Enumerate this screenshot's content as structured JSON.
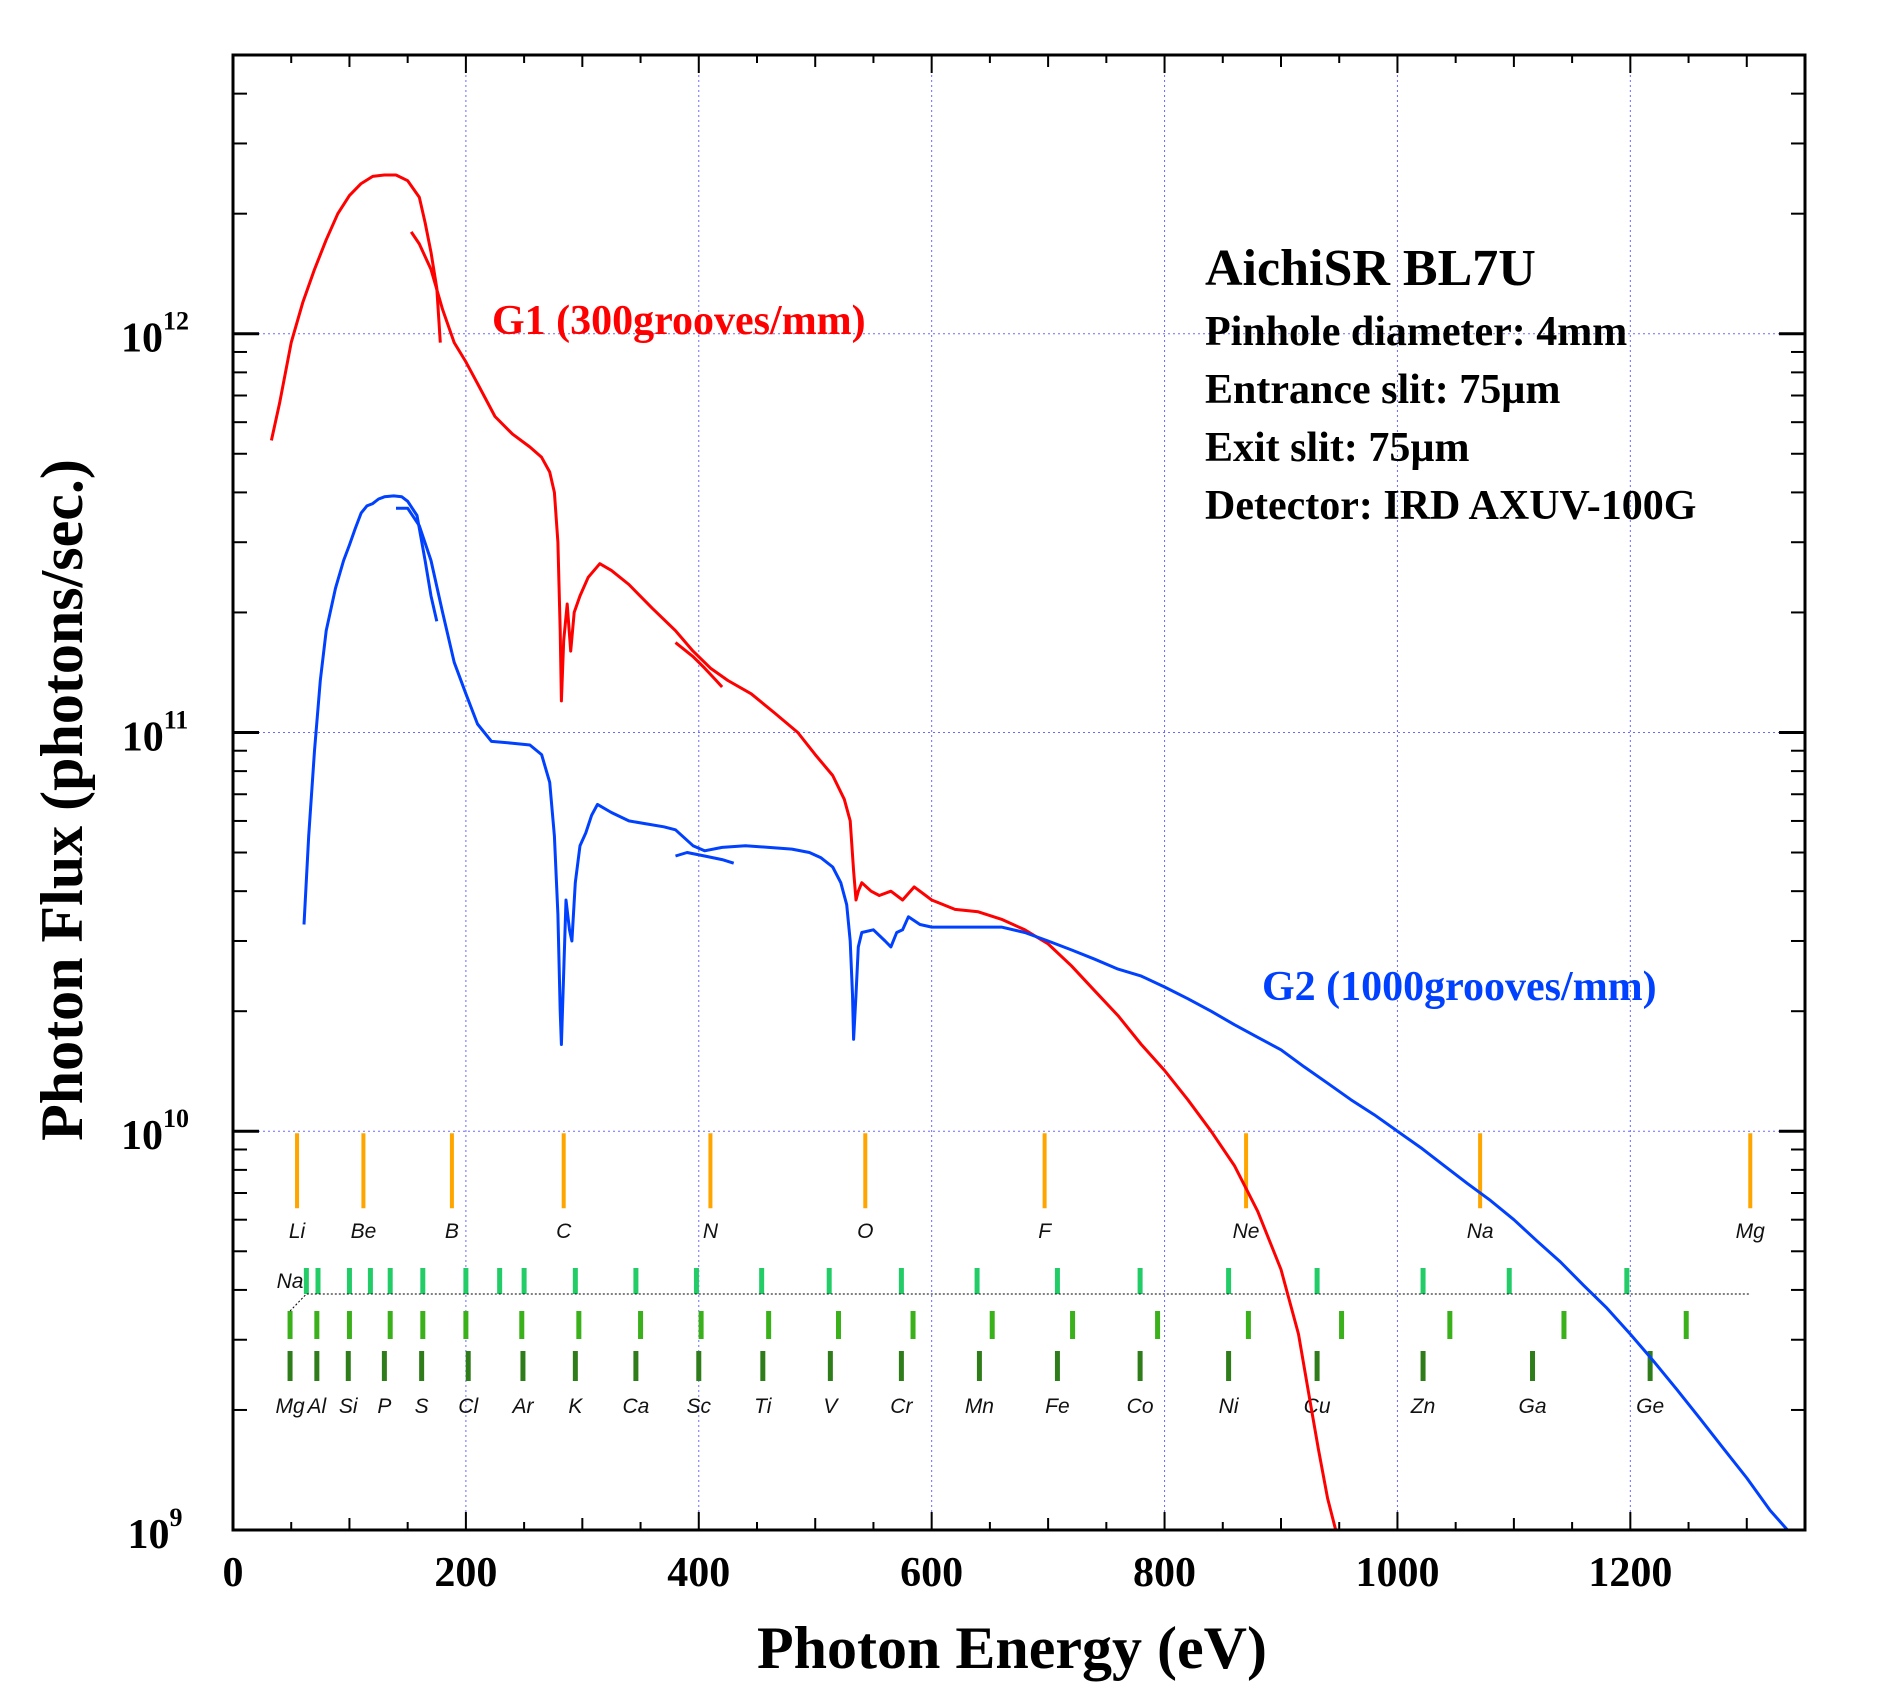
{
  "chart_data": {
    "type": "line",
    "title": "AichiSR BL7U",
    "annotations": [
      "Pinhole diameter: 4mm",
      "Entrance slit: 75µm",
      "Exit slit: 75µm",
      "Detector: IRD AXUV-100G"
    ],
    "xlabel": "Photon Energy (eV)",
    "ylabel": "Photon Flux (photons/sec.)",
    "xlim": [
      0,
      1350
    ],
    "ylim": [
      1000000000.0,
      5000000000000.0
    ],
    "yscale": "log",
    "grid": true,
    "x_ticks": [
      "0",
      "200",
      "400",
      "600",
      "800",
      "1000",
      "1200"
    ],
    "y_ticks": [
      {
        "base": "10",
        "exp": "9",
        "value": 1000000000.0
      },
      {
        "base": "10",
        "exp": "10",
        "value": 10000000000.0
      },
      {
        "base": "10",
        "exp": "11",
        "value": 100000000000.0
      },
      {
        "base": "10",
        "exp": "12",
        "value": 1000000000000.0
      }
    ],
    "series": [
      {
        "name": "G1 (300grooves/mm)",
        "color": "#ff0000",
        "segments": [
          [
            [
              33,
              540000000000.0
            ],
            [
              40,
              670000000000.0
            ],
            [
              50,
              950000000000.0
            ],
            [
              60,
              1200000000000.0
            ],
            [
              70,
              1450000000000.0
            ],
            [
              80,
              1720000000000.0
            ],
            [
              90,
              2000000000000.0
            ],
            [
              100,
              2220000000000.0
            ],
            [
              110,
              2380000000000.0
            ],
            [
              120,
              2480000000000.0
            ],
            [
              130,
              2500000000000.0
            ],
            [
              140,
              2500000000000.0
            ],
            [
              150,
              2420000000000.0
            ],
            [
              160,
              2200000000000.0
            ],
            [
              165,
              1900000000000.0
            ],
            [
              170,
              1600000000000.0
            ],
            [
              175,
              1300000000000.0
            ],
            [
              178,
              950000000000.0
            ]
          ],
          [
            [
              153,
              1800000000000.0
            ],
            [
              160,
              1680000000000.0
            ],
            [
              170,
              1450000000000.0
            ],
            [
              180,
              1150000000000.0
            ],
            [
              190,
              950000000000.0
            ],
            [
              200,
              850000000000.0
            ],
            [
              210,
              750000000000.0
            ],
            [
              225,
              620000000000.0
            ],
            [
              240,
              560000000000.0
            ],
            [
              255,
              520000000000.0
            ],
            [
              265,
              490000000000.0
            ],
            [
              272,
              450000000000.0
            ],
            [
              276,
              400000000000.0
            ],
            [
              279,
              300000000000.0
            ],
            [
              281,
              180000000000.0
            ],
            [
              282,
              120000000000.0
            ],
            [
              284,
              170000000000.0
            ],
            [
              287,
              210000000000.0
            ],
            [
              290,
              160000000000.0
            ],
            [
              293,
              200000000000.0
            ],
            [
              298,
              220000000000.0
            ],
            [
              305,
              245000000000.0
            ],
            [
              315,
              265000000000.0
            ],
            [
              325,
              255000000000.0
            ],
            [
              340,
              235000000000.0
            ],
            [
              360,
              205000000000.0
            ],
            [
              380,
              180000000000.0
            ],
            [
              395,
              160000000000.0
            ],
            [
              410,
              145000000000.0
            ],
            [
              425,
              135000000000.0
            ],
            [
              445,
              125000000000.0
            ],
            [
              465,
              112000000000.0
            ],
            [
              485,
              100000000000.0
            ],
            [
              500,
              88000000000.0
            ],
            [
              515,
              78000000000.0
            ],
            [
              525,
              68000000000.0
            ],
            [
              530,
              60000000000.0
            ],
            [
              533,
              45000000000.0
            ],
            [
              535,
              38000000000.0
            ],
            [
              537,
              40000000000.0
            ],
            [
              540,
              42000000000.0
            ],
            [
              548,
              40000000000.0
            ],
            [
              555,
              39000000000.0
            ],
            [
              565,
              40000000000.0
            ],
            [
              575,
              38000000000.0
            ],
            [
              585,
              41000000000.0
            ],
            [
              600,
              38000000000.0
            ],
            [
              620,
              36000000000.0
            ],
            [
              640,
              35500000000.0
            ],
            [
              660,
              34000000000.0
            ],
            [
              680,
              32000000000.0
            ],
            [
              700,
              29500000000.0
            ],
            [
              720,
              26000000000.0
            ],
            [
              740,
              22500000000.0
            ],
            [
              760,
              19500000000.0
            ],
            [
              780,
              16500000000.0
            ],
            [
              800,
              14200000000.0
            ],
            [
              820,
              12000000000.0
            ],
            [
              840,
              10000000000.0
            ],
            [
              860,
              8200000000.0
            ],
            [
              880,
              6300000000.0
            ],
            [
              900,
              4500000000.0
            ],
            [
              915,
              3100000000.0
            ],
            [
              925,
              2100000000.0
            ],
            [
              932,
              1600000000.0
            ],
            [
              940,
              1200000000.0
            ],
            [
              947,
              1000000000.0
            ]
          ],
          [
            [
              380,
              168000000000.0
            ],
            [
              395,
              155000000000.0
            ],
            [
              405,
              145000000000.0
            ],
            [
              415,
              135000000000.0
            ],
            [
              420,
              130000000000.0
            ]
          ]
        ]
      },
      {
        "name": "G2 (1000grooves/mm)",
        "color": "#0040ff",
        "segments": [
          [
            [
              61,
              33000000000.0
            ],
            [
              65,
              55000000000.0
            ],
            [
              70,
              90000000000.0
            ],
            [
              75,
              135000000000.0
            ],
            [
              80,
              180000000000.0
            ],
            [
              88,
              230000000000.0
            ],
            [
              95,
              270000000000.0
            ],
            [
              100,
              295000000000.0
            ],
            [
              105,
              325000000000.0
            ],
            [
              110,
              355000000000.0
            ],
            [
              115,
              370000000000.0
            ],
            [
              120,
              375000000000.0
            ],
            [
              125,
              385000000000.0
            ],
            [
              130,
              390000000000.0
            ],
            [
              138,
              392000000000.0
            ],
            [
              145,
              390000000000.0
            ],
            [
              150,
              380000000000.0
            ],
            [
              158,
              350000000000.0
            ],
            [
              165,
              270000000000.0
            ],
            [
              170,
              220000000000.0
            ],
            [
              175,
              190000000000.0
            ]
          ],
          [
            [
              140,
              365000000000.0
            ],
            [
              150,
              365000000000.0
            ],
            [
              160,
              330000000000.0
            ],
            [
              170,
              270000000000.0
            ],
            [
              180,
              200000000000.0
            ],
            [
              190,
              150000000000.0
            ],
            [
              200,
              125000000000.0
            ],
            [
              210,
              105000000000.0
            ],
            [
              222,
              95000000000.0
            ],
            [
              240,
              94000000000.0
            ],
            [
              255,
              93000000000.0
            ],
            [
              265,
              88000000000.0
            ],
            [
              272,
              75000000000.0
            ],
            [
              276,
              55000000000.0
            ],
            [
              279,
              35000000000.0
            ],
            [
              281,
              20000000000.0
            ],
            [
              282,
              16500000000.0
            ],
            [
              284,
              25000000000.0
            ],
            [
              286,
              38000000000.0
            ],
            [
              289,
              32000000000.0
            ],
            [
              291,
              30000000000.0
            ],
            [
              294,
              42000000000.0
            ],
            [
              298,
              52000000000.0
            ],
            [
              303,
              56000000000.0
            ],
            [
              308,
              62000000000.0
            ],
            [
              313,
              66000000000.0
            ],
            [
              325,
              63000000000.0
            ],
            [
              340,
              60000000000.0
            ],
            [
              355,
              59000000000.0
            ],
            [
              370,
              58000000000.0
            ],
            [
              380,
              57000000000.0
            ],
            [
              395,
              52000000000.0
            ],
            [
              405,
              50500000000.0
            ],
            [
              420,
              51500000000.0
            ],
            [
              440,
              52000000000.0
            ],
            [
              460,
              51500000000.0
            ],
            [
              480,
              51000000000.0
            ],
            [
              495,
              50000000000.0
            ],
            [
              505,
              48500000000.0
            ],
            [
              515,
              46000000000.0
            ],
            [
              522,
              42000000000.0
            ],
            [
              527,
              37000000000.0
            ],
            [
              530,
              30000000000.0
            ],
            [
              532,
              22000000000.0
            ],
            [
              533,
              17000000000.0
            ],
            [
              535,
              22000000000.0
            ],
            [
              537,
              29000000000.0
            ],
            [
              540,
              31500000000.0
            ],
            [
              550,
              32000000000.0
            ],
            [
              560,
              30000000000.0
            ],
            [
              565,
              29000000000.0
            ],
            [
              570,
              31500000000.0
            ],
            [
              575,
              32000000000.0
            ],
            [
              580,
              34500000000.0
            ],
            [
              590,
              33000000000.0
            ],
            [
              600,
              32500000000.0
            ],
            [
              620,
              32500000000.0
            ],
            [
              640,
              32500000000.0
            ],
            [
              660,
              32500000000.0
            ],
            [
              680,
              31500000000.0
            ],
            [
              700,
              30000000000.0
            ],
            [
              720,
              28500000000.0
            ],
            [
              740,
              27000000000.0
            ],
            [
              760,
              25500000000.0
            ],
            [
              780,
              24500000000.0
            ],
            [
              800,
              23000000000.0
            ],
            [
              820,
              21500000000.0
            ],
            [
              840,
              20000000000.0
            ],
            [
              860,
              18500000000.0
            ],
            [
              880,
              17200000000.0
            ],
            [
              900,
              16000000000.0
            ],
            [
              920,
              14500000000.0
            ],
            [
              940,
              13200000000.0
            ],
            [
              960,
              12000000000.0
            ],
            [
              980,
              11000000000.0
            ],
            [
              1000,
              10000000000.0
            ],
            [
              1020,
              9100000000.0
            ],
            [
              1040,
              8200000000.0
            ],
            [
              1060,
              7400000000.0
            ],
            [
              1080,
              6700000000.0
            ],
            [
              1100,
              6000000000.0
            ],
            [
              1120,
              5300000000.0
            ],
            [
              1140,
              4700000000.0
            ],
            [
              1160,
              4100000000.0
            ],
            [
              1180,
              3600000000.0
            ],
            [
              1200,
              3100000000.0
            ],
            [
              1220,
              2650000000.0
            ],
            [
              1240,
              2250000000.0
            ],
            [
              1260,
              1900000000.0
            ],
            [
              1280,
              1600000000.0
            ],
            [
              1300,
              1350000000.0
            ],
            [
              1320,
              1120000000.0
            ],
            [
              1335,
              1000000000.0
            ]
          ],
          [
            [
              380,
              49000000000.0
            ],
            [
              390,
              50000000000.0
            ],
            [
              405,
              49000000000.0
            ],
            [
              420,
              48000000000.0
            ],
            [
              430,
              47000000000.0
            ]
          ]
        ]
      }
    ],
    "k_edges": [
      {
        "label": "Li",
        "x": 55,
        "color": "#ffa500"
      },
      {
        "label": "Be",
        "x": 112,
        "color": "#ffa500"
      },
      {
        "label": "B",
        "x": 188,
        "color": "#ffa500"
      },
      {
        "label": "C",
        "x": 284,
        "color": "#ffa500"
      },
      {
        "label": "N",
        "x": 410,
        "color": "#ffa500"
      },
      {
        "label": "O",
        "x": 543,
        "color": "#ffa500"
      },
      {
        "label": "F",
        "x": 697,
        "color": "#ffa500"
      },
      {
        "label": "Ne",
        "x": 870,
        "color": "#ffa500"
      },
      {
        "label": "Na",
        "x": 1071,
        "color": "#ffa500"
      },
      {
        "label": "Mg",
        "x": 1303,
        "color": "#ffa500"
      }
    ],
    "l_edge_rows": [
      {
        "label_row": [
          "Na"
        ],
        "color": "#22cc66"
      },
      {
        "labels": [
          "Mg",
          "Al",
          "Si",
          "P",
          "S",
          "Cl",
          "Ar",
          "K",
          "Ca",
          "Sc",
          "Ti",
          "V",
          "Cr",
          "Mn",
          "Fe",
          "Co",
          "Ni",
          "Cu",
          "Zn",
          "Ga",
          "Ge"
        ],
        "color": "#2e7d1a"
      }
    ],
    "l_edges_top": [
      63,
      73,
      100,
      118,
      135,
      163,
      200,
      229,
      250,
      294,
      346,
      398,
      454,
      512,
      574,
      639,
      708,
      779,
      855,
      931,
      1022,
      1096,
      1197
    ],
    "l_edges_mid": [
      49,
      72,
      100,
      135,
      163,
      200,
      248,
      297,
      350,
      402,
      460,
      520,
      584,
      652,
      721,
      794,
      872,
      952,
      1045,
      1143,
      1248
    ],
    "l_edges_bottom": [
      49,
      72,
      99,
      130,
      162,
      202,
      249,
      294,
      346,
      400,
      455,
      513,
      574,
      641,
      708,
      779,
      855,
      931,
      1022,
      1116,
      1217
    ],
    "l_labels_x": [
      49,
      72,
      99,
      130,
      162,
      202,
      249,
      294,
      346,
      400,
      455,
      513,
      574,
      641,
      708,
      779,
      855,
      931,
      1022,
      1116,
      1217
    ]
  }
}
